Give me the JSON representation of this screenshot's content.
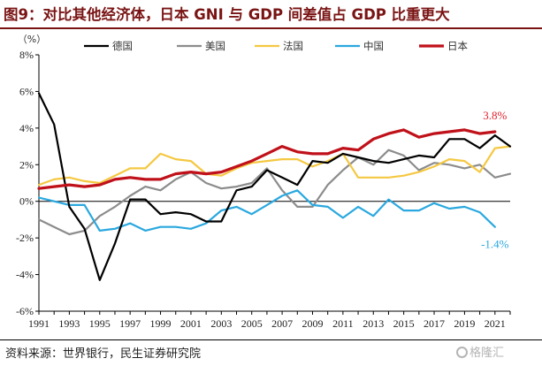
{
  "title": "图9：对比其他经济体，日本 GNI 与 GDP 间差值占 GDP 比重更大",
  "source": "资料来源：世界银行，民生证券研究院",
  "watermark": "格隆汇",
  "chart_data": {
    "type": "line",
    "unit_label": "（%）",
    "x": [
      1991,
      1992,
      1993,
      1994,
      1995,
      1996,
      1997,
      1998,
      1999,
      2000,
      2001,
      2002,
      2003,
      2004,
      2005,
      2006,
      2007,
      2008,
      2009,
      2010,
      2011,
      2012,
      2013,
      2014,
      2015,
      2016,
      2017,
      2018,
      2019,
      2020,
      2021,
      2022
    ],
    "x_ticks": [
      1991,
      1993,
      1995,
      1997,
      1999,
      2001,
      2003,
      2005,
      2007,
      2009,
      2011,
      2013,
      2015,
      2017,
      2019,
      2021
    ],
    "y_ticks": [
      "-6%",
      "-4%",
      "-2%",
      "0%",
      "2%",
      "4%",
      "6%",
      "8%"
    ],
    "y_tick_values": [
      -6,
      -4,
      -2,
      0,
      2,
      4,
      6,
      8
    ],
    "ylim": [
      -6,
      8
    ],
    "grid": false,
    "legend_position": "top",
    "series": [
      {
        "name": "德国",
        "color": "#000000",
        "values": [
          5.9,
          4.2,
          -0.3,
          -1.5,
          -4.3,
          -2.3,
          0.1,
          0.1,
          -0.7,
          -0.6,
          -0.7,
          -1.1,
          -1.1,
          0.6,
          0.8,
          1.7,
          1.3,
          0.9,
          2.2,
          2.1,
          2.6,
          2.4,
          2.2,
          2.1,
          2.3,
          2.5,
          2.4,
          3.4,
          3.4,
          2.9,
          3.6,
          3.0
        ]
      },
      {
        "name": "美国",
        "color": "#8c8c8c",
        "values": [
          -1.0,
          -1.4,
          -1.8,
          -1.6,
          -0.8,
          -0.3,
          0.3,
          0.8,
          0.6,
          1.2,
          1.6,
          1.0,
          0.7,
          0.8,
          1.0,
          1.8,
          0.6,
          -0.3,
          -0.3,
          0.9,
          1.7,
          2.4,
          2.0,
          2.8,
          2.5,
          1.7,
          2.1,
          2.0,
          1.8,
          2.0,
          1.3,
          1.5
        ]
      },
      {
        "name": "法国",
        "color": "#f5c842",
        "values": [
          0.9,
          1.2,
          1.3,
          1.1,
          1.0,
          1.4,
          1.8,
          1.8,
          2.6,
          2.3,
          2.2,
          1.5,
          1.4,
          1.8,
          2.1,
          2.2,
          2.3,
          2.3,
          1.9,
          2.2,
          2.6,
          1.3,
          1.3,
          1.3,
          1.4,
          1.6,
          1.9,
          2.3,
          2.2,
          1.6,
          2.9,
          3.0
        ]
      },
      {
        "name": "中国",
        "color": "#2aa8df",
        "values": [
          0.2,
          0.0,
          -0.2,
          -0.2,
          -1.6,
          -1.5,
          -1.2,
          -1.6,
          -1.4,
          -1.4,
          -1.5,
          -1.2,
          -0.5,
          -0.3,
          -0.7,
          -0.2,
          0.3,
          0.6,
          -0.2,
          -0.3,
          -0.9,
          -0.3,
          -0.8,
          0.1,
          -0.5,
          -0.5,
          -0.1,
          -0.4,
          -0.3,
          -0.6,
          -1.4,
          null
        ]
      },
      {
        "name": "日本",
        "color": "#c0111a",
        "values": [
          0.7,
          0.8,
          0.9,
          0.8,
          0.9,
          1.2,
          1.3,
          1.2,
          1.2,
          1.5,
          1.6,
          1.5,
          1.6,
          1.9,
          2.2,
          2.6,
          3.0,
          2.7,
          2.6,
          2.6,
          2.9,
          2.8,
          3.4,
          3.7,
          3.9,
          3.5,
          3.7,
          3.8,
          3.9,
          3.7,
          3.8,
          null
        ]
      }
    ],
    "annotations": [
      {
        "series": "日本",
        "text": "3.8%",
        "color": "#e0202a"
      },
      {
        "series": "中国",
        "text": "-1.4%",
        "color": "#2aa8df"
      }
    ]
  }
}
